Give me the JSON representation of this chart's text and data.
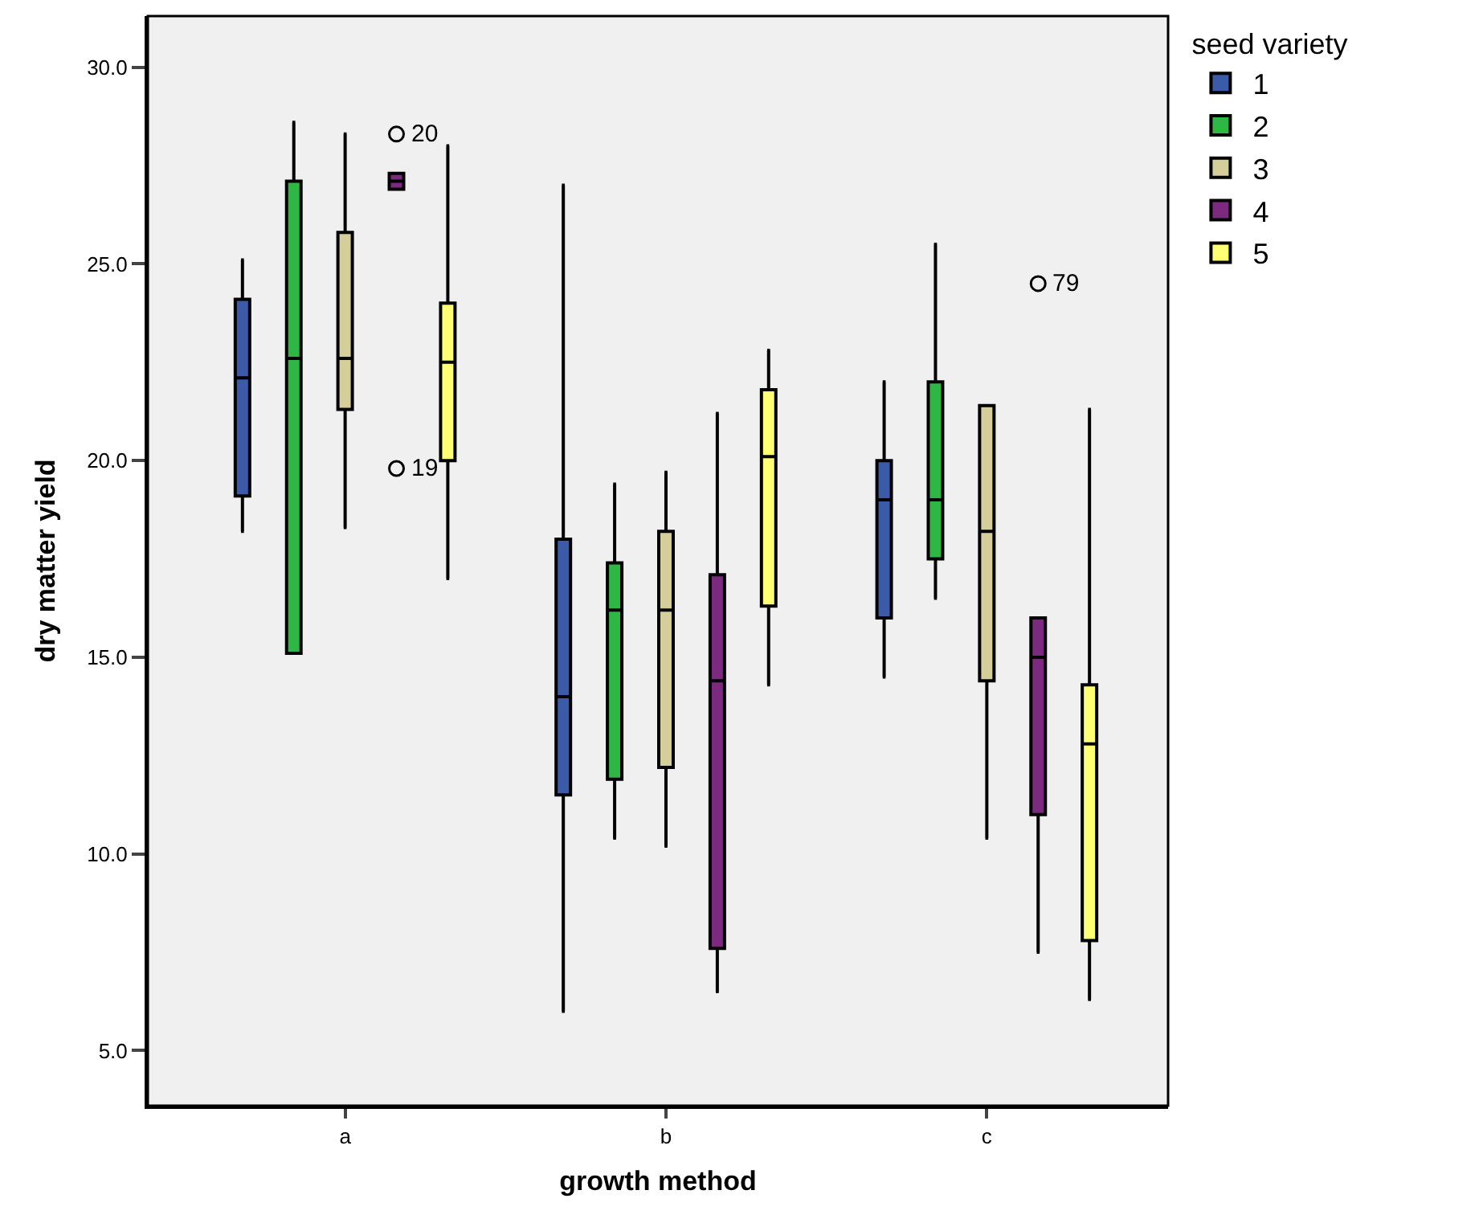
{
  "chart_data": {
    "type": "box",
    "xlabel": "growth method",
    "ylabel": "dry matter yield",
    "legend_title": "seed variety",
    "categories": [
      "a",
      "b",
      "c"
    ],
    "ylim": [
      3.6,
      31.3
    ],
    "yticks": [
      {
        "value": 5,
        "label": "5.0"
      },
      {
        "value": 10,
        "label": "10.0"
      },
      {
        "value": 15,
        "label": "15.0"
      },
      {
        "value": 20,
        "label": "20.0"
      },
      {
        "value": 25,
        "label": "25.0"
      },
      {
        "value": 30,
        "label": "30.0"
      }
    ],
    "grid": false,
    "legend": "top right",
    "series": [
      {
        "name": "1",
        "color": "#3b5ba9",
        "boxes": [
          {
            "low": 18.2,
            "q1": 19.1,
            "median": 22.1,
            "q3": 24.1,
            "high": 25.1
          },
          {
            "low": 6.0,
            "q1": 11.5,
            "median": 14.0,
            "q3": 18.0,
            "high": 27.0
          },
          {
            "low": 14.5,
            "q1": 16.0,
            "median": 19.0,
            "q3": 20.0,
            "high": 22.0
          }
        ]
      },
      {
        "name": "2",
        "color": "#2eb744",
        "boxes": [
          {
            "low": 15.1,
            "q1": 15.1,
            "median": 22.6,
            "q3": 27.1,
            "high": 28.6
          },
          {
            "low": 10.4,
            "q1": 11.9,
            "median": 16.2,
            "q3": 17.4,
            "high": 19.4
          },
          {
            "low": 16.5,
            "q1": 17.5,
            "median": 19.0,
            "q3": 22.0,
            "high": 25.5
          }
        ]
      },
      {
        "name": "3",
        "color": "#d4cf9a",
        "boxes": [
          {
            "low": 18.3,
            "q1": 21.3,
            "median": 22.6,
            "q3": 25.8,
            "high": 28.3
          },
          {
            "low": 10.2,
            "q1": 12.2,
            "median": 16.2,
            "q3": 18.2,
            "high": 19.7
          },
          {
            "low": 10.4,
            "q1": 14.4,
            "median": 18.2,
            "q3": 21.4,
            "high": 21.4
          }
        ]
      },
      {
        "name": "4",
        "color": "#7b2a7f",
        "boxes": [
          {
            "low": 26.9,
            "q1": 26.9,
            "median": 27.1,
            "q3": 27.3,
            "high": 27.3,
            "outliers": [
              28.3,
              19.8
            ]
          },
          {
            "low": 6.5,
            "q1": 7.6,
            "median": 14.4,
            "q3": 17.1,
            "high": 21.2
          },
          {
            "low": 7.5,
            "q1": 11.0,
            "median": 15.0,
            "q3": 16.0,
            "high": 16.0,
            "outliers": [
              24.5
            ]
          }
        ]
      },
      {
        "name": "5",
        "color": "#ffff73",
        "boxes": [
          {
            "low": 17.0,
            "q1": 20.0,
            "median": 22.5,
            "q3": 24.0,
            "high": 28.0
          },
          {
            "low": 14.3,
            "q1": 16.3,
            "median": 20.1,
            "q3": 21.8,
            "high": 22.8
          },
          {
            "low": 6.3,
            "q1": 7.8,
            "median": 12.8,
            "q3": 14.3,
            "high": 21.3
          }
        ]
      }
    ],
    "annotations": [
      "20",
      "19",
      "79"
    ]
  }
}
